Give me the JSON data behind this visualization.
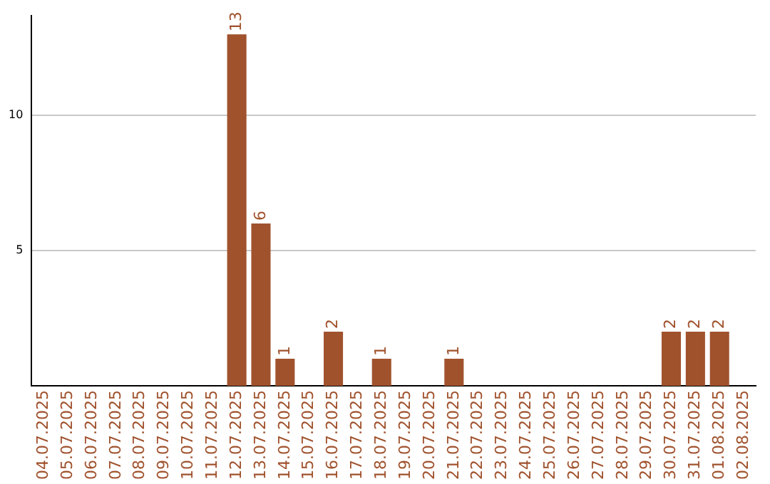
{
  "chart_data": {
    "type": "bar",
    "categories": [
      "04.07.2025",
      "05.07.2025",
      "06.07.2025",
      "07.07.2025",
      "08.07.2025",
      "09.07.2025",
      "10.07.2025",
      "11.07.2025",
      "12.07.2025",
      "13.07.2025",
      "14.07.2025",
      "15.07.2025",
      "16.07.2025",
      "17.07.2025",
      "18.07.2025",
      "19.07.2025",
      "20.07.2025",
      "21.07.2025",
      "22.07.2025",
      "23.07.2025",
      "24.07.2025",
      "25.07.2025",
      "26.07.2025",
      "27.07.2025",
      "28.07.2025",
      "29.07.2025",
      "30.07.2025",
      "31.07.2025",
      "01.08.2025",
      "02.08.2025"
    ],
    "values": [
      0,
      0,
      0,
      0,
      0,
      0,
      0,
      0,
      13,
      6,
      1,
      0,
      2,
      0,
      1,
      0,
      0,
      1,
      0,
      0,
      0,
      0,
      0,
      0,
      0,
      0,
      2,
      2,
      2,
      0
    ],
    "value_labels": [
      null,
      null,
      null,
      null,
      null,
      null,
      null,
      null,
      "13",
      "6",
      "1",
      null,
      "2",
      null,
      "1",
      null,
      null,
      "1",
      null,
      null,
      null,
      null,
      null,
      null,
      null,
      null,
      "2",
      "2",
      "2",
      null
    ],
    "color": "#a0522d",
    "ylim": [
      0,
      13.7
    ],
    "yticks": [
      5,
      10
    ],
    "grid": "y"
  }
}
